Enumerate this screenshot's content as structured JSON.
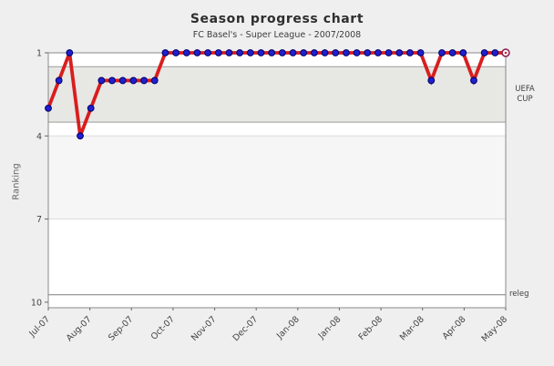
{
  "chart_data": {
    "type": "line",
    "title": "Season progress chart",
    "subtitle": "FC Basel's - Super League - 2007/2008",
    "ylabel": "Ranking",
    "x_tick_labels": [
      "Jul-07",
      "Aug-07",
      "Sep-07",
      "Oct-07",
      "Nov-07",
      "Dec-07",
      "Jan-08",
      "Jan-08",
      "Feb-08",
      "Mar-08",
      "Apr-08",
      "May-08"
    ],
    "y_ticks": [
      1,
      4,
      7,
      10
    ],
    "ylim": [
      1,
      10.2
    ],
    "y_inverted": true,
    "grid": "horizontal-bands",
    "legend": "none",
    "series": [
      {
        "name": "FC Basel ranking",
        "values": [
          3,
          2,
          1,
          4,
          3,
          2,
          2,
          2,
          2,
          2,
          2,
          1,
          1,
          1,
          1,
          1,
          1,
          1,
          1,
          1,
          1,
          1,
          1,
          1,
          1,
          1,
          1,
          1,
          1,
          1,
          1,
          1,
          1,
          1,
          1,
          1,
          2,
          1,
          1,
          1,
          2,
          1,
          1,
          1
        ]
      }
    ],
    "zones": [
      {
        "label": "UEFA CUP",
        "from_rank": 1.5,
        "to_rank": 3.5,
        "color": "#e7e7e4",
        "border": "#9b9b9b"
      },
      {
        "label": "",
        "from_rank": 4,
        "to_rank": 7,
        "color": "#f6f6f6",
        "border": "#dcdcdc"
      }
    ],
    "reference_lines": [
      {
        "label": "releg",
        "rank": 9.73,
        "color": "#7d7d7d"
      }
    ],
    "colors": {
      "line": "#d81e1e",
      "marker": "#2020cf",
      "marker_edge": "#00006a",
      "current_marker_ring": "#8e2255",
      "plot_background": "#ffffff",
      "page_background": "#efefef",
      "frame": "#8a8a8a",
      "tick_text": "#444444"
    }
  }
}
